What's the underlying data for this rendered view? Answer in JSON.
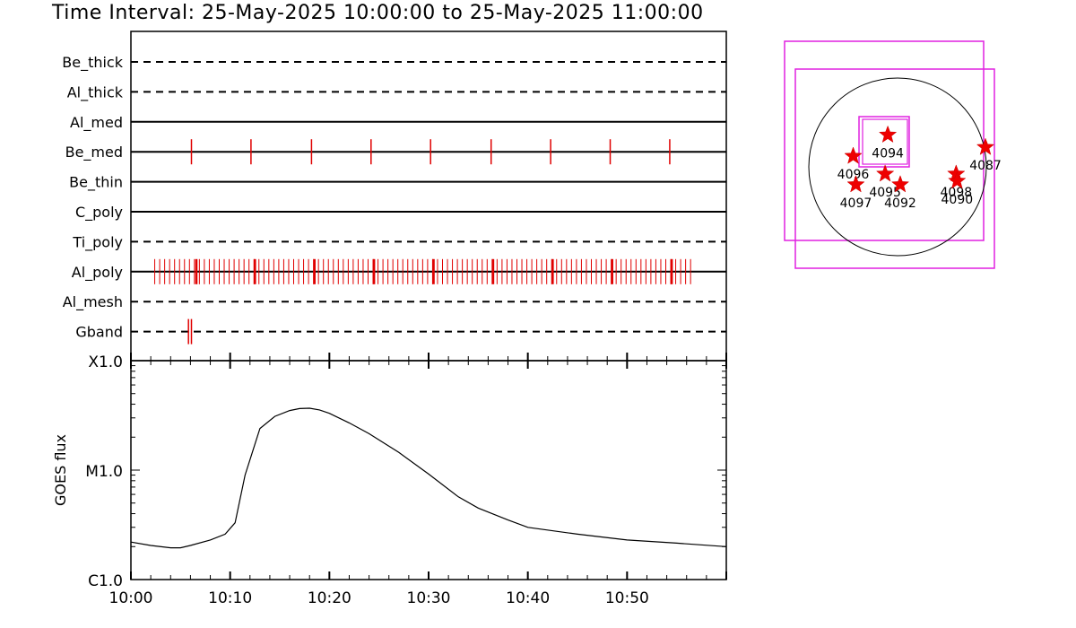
{
  "title": "Time Interval: 25-May-2025 10:00:00 to 25-May-2025 11:00:00",
  "chart_data": [
    {
      "type": "timeline",
      "time_range": [
        "10:00",
        "11:00"
      ],
      "rows": [
        {
          "label": "Be_thick",
          "style": "dashed",
          "marks": [],
          "intervals": []
        },
        {
          "label": "Al_thick",
          "style": "dashed",
          "marks": [],
          "intervals": []
        },
        {
          "label": "Al_med",
          "style": "solid",
          "marks": [],
          "intervals": []
        },
        {
          "label": "Be_med",
          "style": "solid",
          "marks": [
            6.1,
            12.1,
            18.2,
            24.2,
            30.2,
            36.3,
            42.3,
            48.3,
            54.3
          ],
          "intervals": []
        },
        {
          "label": "Be_thin",
          "style": "solid",
          "marks": [],
          "intervals": []
        },
        {
          "label": "C_poly",
          "style": "solid",
          "marks": [],
          "intervals": []
        },
        {
          "label": "Ti_poly",
          "style": "dashed",
          "marks": [],
          "intervals": []
        },
        {
          "label": "Al_poly",
          "style": "solid",
          "marks": [],
          "intervals": [
            [
              2.4,
              56.7
            ]
          ],
          "interval_step": 0.5,
          "major_marks": [
            6.6,
            12.5,
            18.5,
            24.5,
            30.5,
            36.5,
            42.5,
            48.5,
            54.5
          ]
        },
        {
          "label": "Al_mesh",
          "style": "dashed",
          "marks": [],
          "intervals": []
        },
        {
          "label": "Gband",
          "style": "dashed",
          "marks": [
            5.8,
            6.1
          ],
          "intervals": []
        }
      ]
    },
    {
      "type": "line",
      "ylabel": "GOES flux",
      "yscale": "log",
      "ylim": [
        1e-06,
        0.0001
      ],
      "ytick_labels": [
        "C1.0",
        "M1.0",
        "X1.0"
      ],
      "xtick_labels": [
        "10:00",
        "10:10",
        "10:20",
        "10:30",
        "10:40",
        "10:50"
      ],
      "x": [
        0,
        2,
        4,
        5,
        6,
        8,
        9.5,
        10.5,
        11.5,
        13,
        14.5,
        16,
        17,
        18,
        19,
        20,
        22,
        24,
        27,
        30,
        33,
        35,
        38,
        40,
        45,
        50,
        55,
        60
      ],
      "y": [
        2.2e-06,
        2.05e-06,
        1.95e-06,
        1.95e-06,
        2.05e-06,
        2.3e-06,
        2.6e-06,
        3.3e-06,
        9e-06,
        2.4e-05,
        3.1e-05,
        3.5e-05,
        3.65e-05,
        3.68e-05,
        3.55e-05,
        3.3e-05,
        2.7e-05,
        2.15e-05,
        1.45e-05,
        9.2e-06,
        5.7e-06,
        4.5e-06,
        3.5e-06,
        3e-06,
        2.6e-06,
        2.3e-06,
        2.15e-06,
        2e-06
      ]
    },
    {
      "type": "solar_map",
      "active_regions": [
        {
          "label": "4094",
          "x": -0.11,
          "y": 0.36
        },
        {
          "label": "4096",
          "x": -0.5,
          "y": 0.12
        },
        {
          "label": "4095",
          "x": -0.14,
          "y": -0.08
        },
        {
          "label": "4097",
          "x": -0.47,
          "y": -0.2
        },
        {
          "label": "4092",
          "x": 0.03,
          "y": -0.2
        },
        {
          "label": "4098",
          "x": 0.66,
          "y": -0.08
        },
        {
          "label": "4090",
          "x": 0.67,
          "y": -0.16
        },
        {
          "label": "4087",
          "x": 0.99,
          "y": 0.22
        }
      ]
    }
  ]
}
